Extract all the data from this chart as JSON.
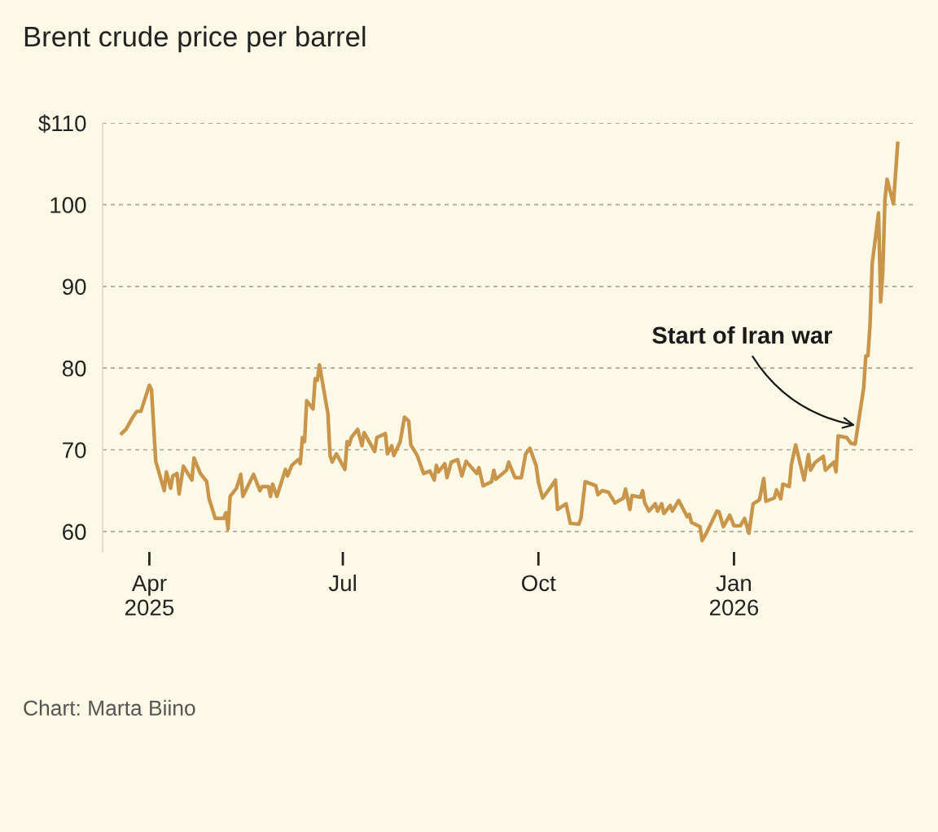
{
  "chart_data": {
    "type": "line",
    "title": "Brent crude price per barrel",
    "x": [
      "2025-03-19",
      "2025-03-21",
      "2025-03-24",
      "2025-03-26",
      "2025-03-28",
      "2025-04-01",
      "2025-04-02",
      "2025-04-04",
      "2025-04-08",
      "2025-04-09",
      "2025-04-11",
      "2025-04-12",
      "2025-04-14",
      "2025-04-15",
      "2025-04-17",
      "2025-04-21",
      "2025-04-22",
      "2025-04-25",
      "2025-04-28",
      "2025-04-29",
      "2025-05-02",
      "2025-05-06",
      "2025-05-07",
      "2025-05-08",
      "2025-05-09",
      "2025-05-12",
      "2025-05-14",
      "2025-05-15",
      "2025-05-20",
      "2025-05-23",
      "2025-05-24",
      "2025-05-27",
      "2025-05-28",
      "2025-05-29",
      "2025-05-31",
      "2025-06-04",
      "2025-06-05",
      "2025-06-07",
      "2025-06-10",
      "2025-06-11",
      "2025-06-12",
      "2025-06-13",
      "2025-06-14",
      "2025-06-17",
      "2025-06-18",
      "2025-06-19",
      "2025-06-20",
      "2025-06-24",
      "2025-06-25",
      "2025-06-26",
      "2025-06-28",
      "2025-07-02",
      "2025-07-03",
      "2025-07-04",
      "2025-07-05",
      "2025-07-08",
      "2025-07-10",
      "2025-07-11",
      "2025-07-16",
      "2025-07-17",
      "2025-07-21",
      "2025-07-22",
      "2025-07-24",
      "2025-07-25",
      "2025-07-28",
      "2025-07-30",
      "2025-08-01",
      "2025-08-02",
      "2025-08-05",
      "2025-08-08",
      "2025-08-11",
      "2025-08-13",
      "2025-08-14",
      "2025-08-15",
      "2025-08-18",
      "2025-08-19",
      "2025-08-21",
      "2025-08-24",
      "2025-08-26",
      "2025-08-28",
      "2025-09-02",
      "2025-09-03",
      "2025-09-05",
      "2025-09-09",
      "2025-09-10",
      "2025-09-11",
      "2025-09-16",
      "2025-09-17",
      "2025-09-20",
      "2025-09-23",
      "2025-09-25",
      "2025-09-27",
      "2025-09-30",
      "2025-10-01",
      "2025-10-03",
      "2025-10-07",
      "2025-10-09",
      "2025-10-10",
      "2025-10-14",
      "2025-10-16",
      "2025-10-20",
      "2025-10-21",
      "2025-10-23",
      "2025-10-28",
      "2025-10-29",
      "2025-10-31",
      "2025-11-03",
      "2025-11-06",
      "2025-11-10",
      "2025-11-11",
      "2025-11-13",
      "2025-11-14",
      "2025-11-18",
      "2025-11-19",
      "2025-11-20",
      "2025-11-22",
      "2025-11-25",
      "2025-11-26",
      "2025-11-28",
      "2025-11-29",
      "2025-12-02",
      "2025-12-03",
      "2025-12-06",
      "2025-12-10",
      "2025-12-11",
      "2025-12-12",
      "2025-12-16",
      "2025-12-17",
      "2025-12-19",
      "2025-12-24",
      "2025-12-25",
      "2025-12-27",
      "2025-12-30",
      "2026-01-01",
      "2026-01-04",
      "2026-01-06",
      "2026-01-08",
      "2026-01-10",
      "2026-01-13",
      "2026-01-15",
      "2026-01-16",
      "2026-01-20",
      "2026-01-21",
      "2026-01-23",
      "2026-01-24",
      "2026-01-27",
      "2026-01-28",
      "2026-01-30",
      "2026-02-03",
      "2026-02-05",
      "2026-02-06",
      "2026-02-08",
      "2026-02-12",
      "2026-02-13",
      "2026-02-17",
      "2026-02-18",
      "2026-02-19",
      "2026-02-23",
      "2026-02-25",
      "2026-02-27",
      "2026-03-03",
      "2026-03-04",
      "2026-03-05",
      "2026-03-06",
      "2026-03-07",
      "2026-03-10",
      "2026-03-11",
      "2026-03-12",
      "2026-03-13",
      "2026-03-14",
      "2026-03-17",
      "2026-03-19"
    ],
    "series": [
      {
        "color": "#c8954a",
        "values": [
          72.0,
          72.5,
          73.9,
          74.7,
          74.7,
          77.9,
          77.4,
          68.6,
          65.0,
          67.3,
          65.3,
          66.8,
          67.1,
          64.6,
          68.0,
          66.3,
          69.0,
          67.1,
          66.1,
          64.1,
          61.6,
          61.6,
          62.3,
          60.3,
          64.3,
          65.3,
          67.0,
          64.3,
          67.0,
          65.0,
          65.5,
          65.5,
          64.3,
          65.8,
          64.3,
          67.6,
          66.8,
          68.1,
          68.8,
          68.3,
          71.5,
          71.0,
          76.0,
          75.0,
          78.7,
          78.5,
          80.4,
          74.4,
          69.3,
          68.5,
          69.5,
          67.6,
          71.0,
          70.6,
          71.5,
          72.5,
          70.5,
          72.1,
          69.8,
          71.5,
          72.0,
          69.5,
          70.5,
          69.3,
          71.0,
          74.0,
          73.5,
          70.6,
          69.3,
          67.1,
          67.4,
          66.3,
          68.1,
          67.3,
          68.3,
          66.6,
          68.5,
          68.8,
          66.8,
          68.6,
          67.1,
          67.8,
          65.6,
          66.1,
          67.5,
          66.4,
          67.5,
          68.5,
          66.6,
          66.6,
          69.5,
          70.2,
          68.0,
          66.0,
          64.1,
          65.5,
          66.3,
          62.7,
          63.4,
          61.0,
          60.9,
          61.6,
          66.1,
          65.6,
          64.5,
          65.0,
          64.8,
          63.5,
          64.1,
          65.2,
          62.7,
          64.4,
          64.2,
          65.0,
          63.5,
          62.5,
          63.4,
          62.5,
          63.4,
          62.2,
          63.2,
          62.5,
          63.8,
          61.8,
          62.1,
          61.1,
          60.6,
          58.9,
          59.8,
          62.5,
          62.4,
          60.6,
          62.0,
          60.7,
          60.7,
          61.6,
          59.8,
          63.4,
          63.9,
          66.5,
          63.7,
          64.1,
          65.1,
          64.0,
          65.8,
          65.5,
          68.2,
          70.6,
          66.3,
          69.4,
          67.5,
          68.4,
          69.2,
          67.5,
          68.5,
          67.3,
          71.7,
          71.5,
          70.8,
          70.7,
          77.6,
          81.5,
          81.5,
          85.3,
          92.8,
          99.0,
          88.1,
          91.9,
          100.6,
          103.1,
          100.1,
          107.5
        ]
      }
    ],
    "xlim": [
      "2025-03-10",
      "2026-03-28"
    ],
    "xticks": [
      {
        "value": "2025-04-01",
        "label": "Apr\n2025"
      },
      {
        "value": "2025-07-01",
        "label": "Jul"
      },
      {
        "value": "2025-10-01",
        "label": "Oct"
      },
      {
        "value": "2026-01-01",
        "label": "Jan\n2026"
      }
    ],
    "ylim": [
      57.5,
      110
    ],
    "yticks": [
      60,
      70,
      80,
      90,
      100,
      {
        "value": 110,
        "label": "$110"
      }
    ],
    "grid": "y",
    "legend": false,
    "line_style": "solid",
    "marker": "none",
    "annotations": [
      {
        "text": "Start of Iran war",
        "x": "2026-02-27",
        "y": 73
      },
      "Chart: Marta Biino"
    ]
  }
}
